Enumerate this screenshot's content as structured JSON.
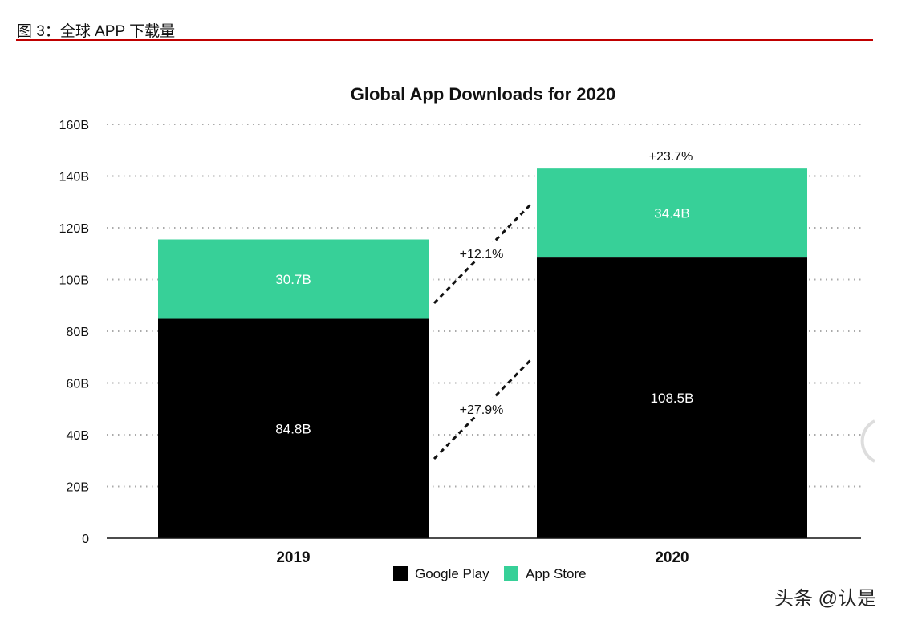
{
  "figure_title": "图 3：全球 APP 下载量",
  "watermark": "头条 @认是",
  "chart_data": {
    "type": "bar",
    "stacked": true,
    "title": "Global App Downloads for 2020",
    "categories": [
      "2019",
      "2020"
    ],
    "series": [
      {
        "name": "Google Play",
        "values": [
          84.8,
          108.5
        ],
        "labels": [
          "84.8B",
          "108.5B"
        ],
        "color": "#000000"
      },
      {
        "name": "App Store",
        "values": [
          30.7,
          34.4
        ],
        "labels": [
          "30.7B",
          "34.4B"
        ],
        "color": "#37d098"
      }
    ],
    "ylim": [
      0,
      160
    ],
    "yticks": [
      0,
      20,
      40,
      60,
      80,
      100,
      120,
      140,
      160
    ],
    "ytick_labels": [
      "0",
      "20B",
      "40B",
      "60B",
      "80B",
      "100B",
      "120B",
      "140B",
      "160B"
    ],
    "grid": true,
    "legend": "bottom-center",
    "annotations": {
      "total_growth": "+23.7%",
      "app_store_growth": "+12.1%",
      "google_play_growth": "+27.9%"
    }
  }
}
